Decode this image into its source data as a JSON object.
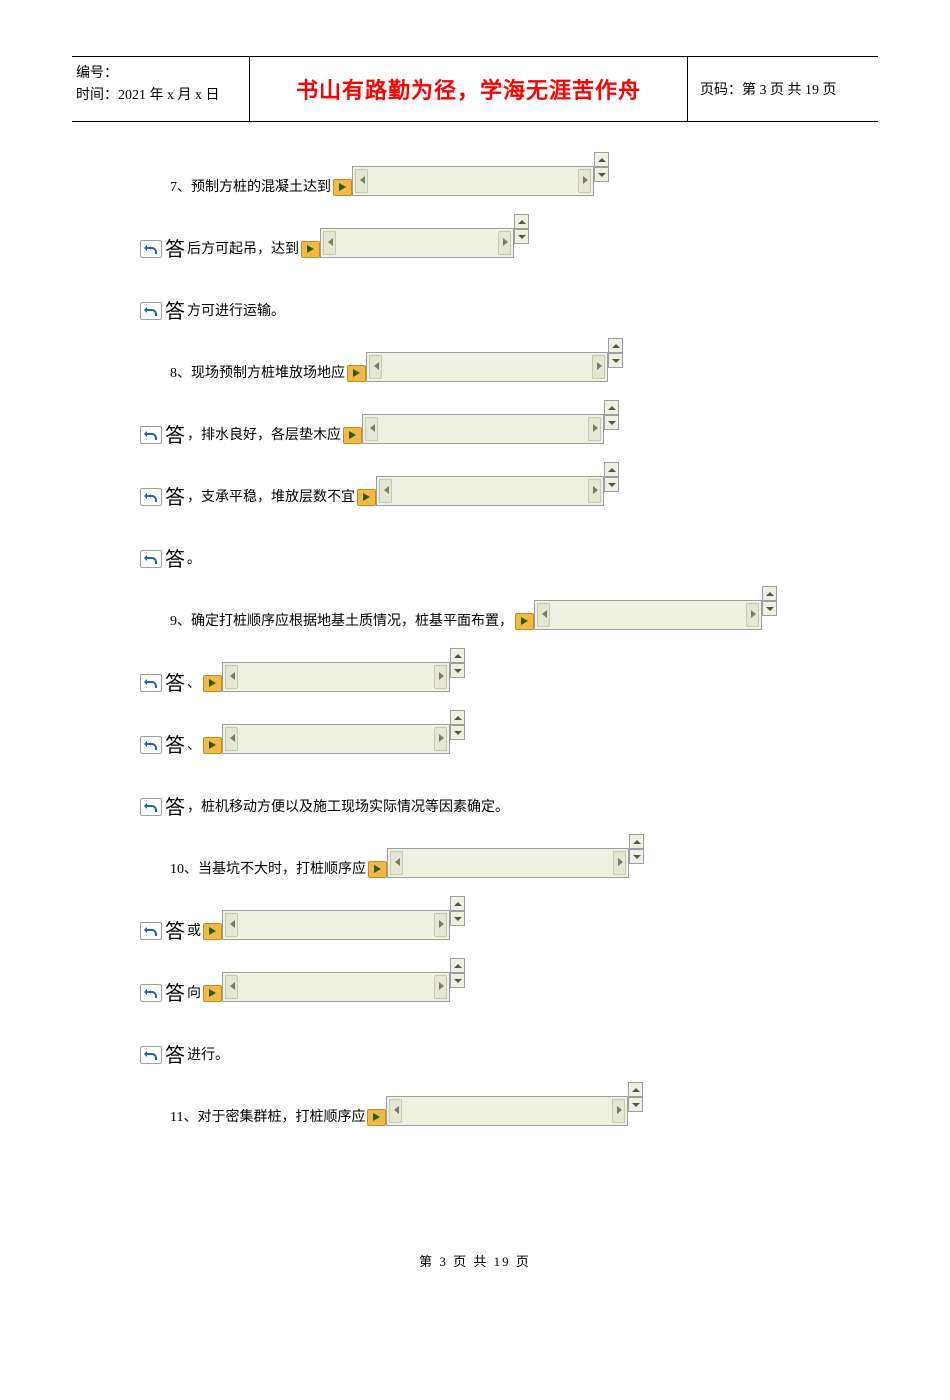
{
  "header": {
    "id_label": "编号：",
    "time_label": "时间：2021 年 x 月 x 日",
    "motto": "书山有路勤为径，学海无涯苦作舟",
    "page_label": "页码：第 3 页 共 19 页"
  },
  "lines": [
    {
      "indent": true,
      "leading_answer": false,
      "pre_text": "7、预制方桩的混凝土达到 ",
      "blank_width": 242,
      "post_text": ""
    },
    {
      "indent": false,
      "leading_answer": true,
      "pre_text": "后方可起吊，达到 ",
      "blank_width": 194,
      "post_text": ""
    },
    {
      "indent": false,
      "leading_answer": true,
      "pre_text": "方可进行运输。",
      "blank_width": 0,
      "post_text": ""
    },
    {
      "indent": true,
      "leading_answer": false,
      "pre_text": "8、现场预制方桩堆放场地应 ",
      "blank_width": 242,
      "post_text": ""
    },
    {
      "indent": false,
      "leading_answer": true,
      "pre_text": "，排水良好，各层垫木应 ",
      "blank_width": 242,
      "post_text": ""
    },
    {
      "indent": false,
      "leading_answer": true,
      "pre_text": "，支承平稳，堆放层数不宜 ",
      "blank_width": 228,
      "post_text": ""
    },
    {
      "indent": false,
      "leading_answer": true,
      "pre_text": "。",
      "blank_width": 0,
      "post_text": ""
    },
    {
      "indent": true,
      "leading_answer": false,
      "pre_text": "9、确定打桩顺序应根据地基土质情况，桩基平面布置，",
      "blank_width": 228,
      "post_text": ""
    },
    {
      "indent": false,
      "leading_answer": true,
      "pre_text": "、",
      "blank_width": 228,
      "post_text": ""
    },
    {
      "indent": false,
      "leading_answer": true,
      "pre_text": "、",
      "blank_width": 228,
      "post_text": ""
    },
    {
      "indent": false,
      "leading_answer": true,
      "pre_text": "，桩机移动方便以及施工现场实际情况等因素确定。",
      "blank_width": 0,
      "post_text": ""
    },
    {
      "indent": true,
      "leading_answer": false,
      "pre_text": "10、当基坑不大时，打桩顺序应 ",
      "blank_width": 242,
      "post_text": ""
    },
    {
      "indent": false,
      "leading_answer": true,
      "pre_text": "或 ",
      "blank_width": 228,
      "post_text": ""
    },
    {
      "indent": false,
      "leading_answer": true,
      "pre_text": "向 ",
      "blank_width": 228,
      "post_text": ""
    },
    {
      "indent": false,
      "leading_answer": true,
      "pre_text": "进行。",
      "blank_width": 0,
      "post_text": ""
    },
    {
      "indent": true,
      "leading_answer": false,
      "pre_text": "11、对于密集群桩，打桩顺序应 ",
      "blank_width": 242,
      "post_text": ""
    }
  ],
  "footer": "第 3 页 共 19 页",
  "answer_char": "答",
  "colors": {
    "motto": "#ff0000",
    "blank_bg": "#eef0e0",
    "play_bg": "#f3b948",
    "border": "#9aa0a6"
  }
}
